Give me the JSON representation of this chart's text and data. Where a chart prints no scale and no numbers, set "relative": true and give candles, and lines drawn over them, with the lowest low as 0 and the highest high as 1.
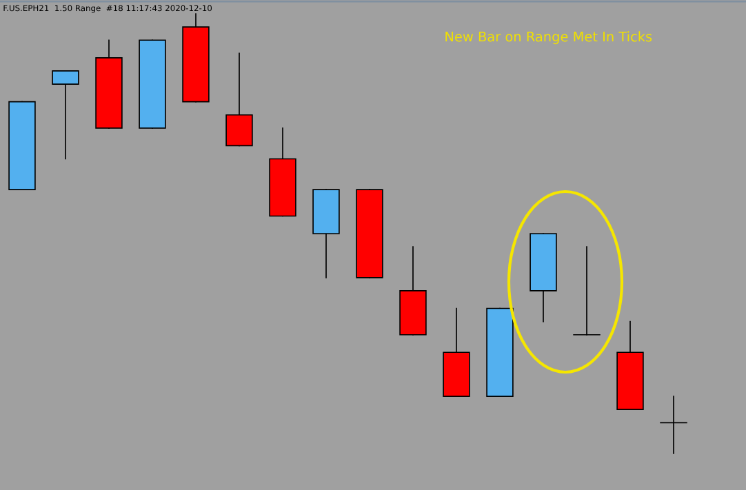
{
  "chart_data": {
    "type": "candlestick",
    "title": "F.US.EPH21  1.50 Range  #18 11:17:43 2020-12-10",
    "annotations": [
      "New Bar on Range Met In Ticks"
    ],
    "relative": true,
    "grid": false,
    "categories": [
      null,
      null,
      null,
      null,
      null,
      null,
      null,
      null,
      null,
      null,
      null,
      null,
      null,
      null,
      null,
      null
    ],
    "ohlc": [
      [
        0.6,
        0.8,
        0.6,
        0.8
      ],
      [
        0.84,
        0.87,
        0.67,
        0.87
      ],
      [
        0.9,
        0.94,
        0.74,
        0.74
      ],
      [
        0.74,
        0.94,
        0.74,
        0.94
      ],
      [
        0.97,
        1.0,
        0.8,
        0.8
      ],
      [
        0.77,
        0.91,
        0.7,
        0.7
      ],
      [
        0.67,
        0.74,
        0.54,
        0.54
      ],
      [
        0.5,
        0.6,
        0.4,
        0.6
      ],
      [
        0.6,
        0.6,
        0.4,
        0.4
      ],
      [
        0.37,
        0.47,
        0.27,
        0.27
      ],
      [
        0.23,
        0.33,
        0.13,
        0.13
      ],
      [
        0.13,
        0.33,
        0.13,
        0.33
      ],
      [
        0.37,
        0.5,
        0.3,
        0.5
      ],
      [
        0.27,
        0.47,
        0.27,
        0.27
      ],
      [
        0.23,
        0.3,
        0.1,
        0.1
      ],
      [
        0.07,
        0.13,
        0.0,
        0.07
      ]
    ],
    "colors": [
      "#53b0ef",
      "#53b0ef",
      "#ff0000",
      "#53b0ef",
      "#ff0000",
      "#ff0000",
      "#ff0000",
      "#53b0ef",
      "#ff0000",
      "#ff0000",
      "#ff0000",
      "#53b0ef",
      "#53b0ef",
      "#000000",
      "#ff0000",
      "#000000"
    ]
  }
}
